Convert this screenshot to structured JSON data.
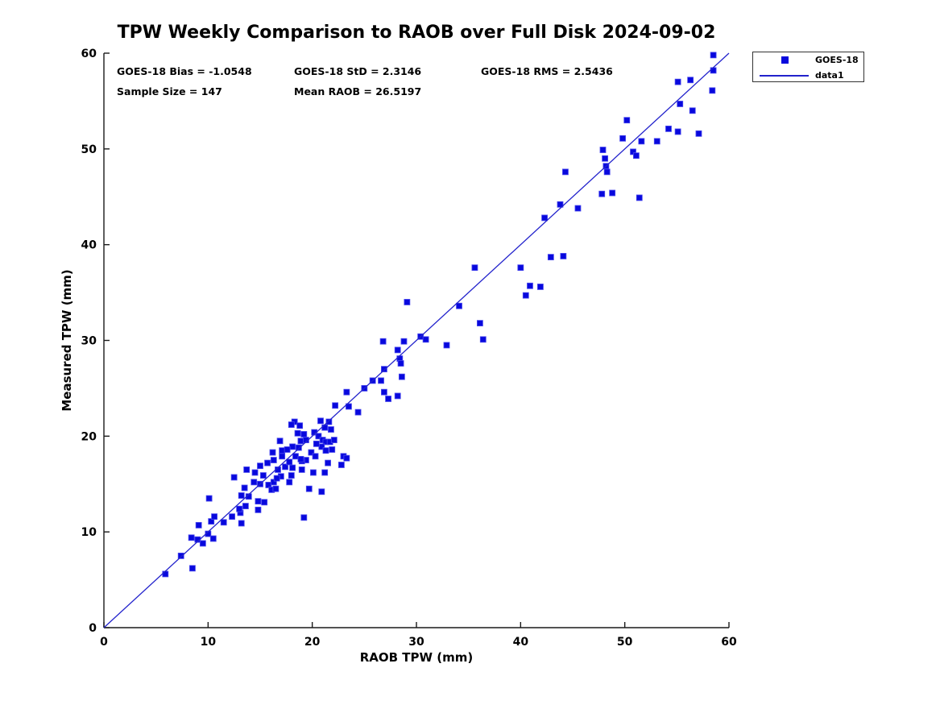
{
  "title": "TPW Weekly Comparison to RAOB over Full Disk 2024-09-02",
  "stats": {
    "bias": "GOES-18 Bias = -1.0548",
    "std": "GOES-18 StD = 2.3146",
    "rms": "GOES-18 RMS = 2.5436",
    "sample_size": "Sample Size = 147",
    "mean_raob": "Mean RAOB = 26.5197"
  },
  "legend": {
    "series1_label": "GOES-18",
    "series2_label": "data1"
  },
  "colors": {
    "marker": "#0808dd",
    "marker_edge": "#4a4aee",
    "line": "#2222cc",
    "axis": "#1a1a1a",
    "text": "#000000"
  },
  "chart_data": {
    "type": "scatter",
    "title": "TPW Weekly Comparison to RAOB over Full Disk 2024-09-02",
    "xlabel": "RAOB TPW (mm)",
    "ylabel": "Measured TPW (mm)",
    "xlim": [
      0,
      60
    ],
    "ylim": [
      0,
      60
    ],
    "xticks": [
      0,
      10,
      20,
      30,
      40,
      50,
      60
    ],
    "yticks": [
      0,
      10,
      20,
      30,
      40,
      50,
      60
    ],
    "grid": false,
    "legend_position": "outside-top-right",
    "series": [
      {
        "name": "GOES-18",
        "kind": "scatter",
        "marker": "square",
        "points": [
          [
            5.9,
            5.6
          ],
          [
            7.4,
            7.5
          ],
          [
            8.5,
            6.2
          ],
          [
            8.4,
            9.4
          ],
          [
            9.0,
            9.2
          ],
          [
            9.5,
            8.8
          ],
          [
            10.0,
            9.8
          ],
          [
            10.5,
            9.3
          ],
          [
            9.1,
            10.7
          ],
          [
            10.3,
            11.1
          ],
          [
            10.6,
            11.6
          ],
          [
            11.5,
            11.0
          ],
          [
            10.1,
            13.5
          ],
          [
            12.3,
            11.6
          ],
          [
            13.1,
            12.0
          ],
          [
            13.6,
            12.7
          ],
          [
            13.2,
            10.9
          ],
          [
            13.0,
            12.4
          ],
          [
            14.8,
            12.3
          ],
          [
            14.8,
            13.2
          ],
          [
            15.4,
            13.1
          ],
          [
            13.2,
            13.8
          ],
          [
            13.9,
            13.7
          ],
          [
            13.5,
            14.6
          ],
          [
            14.4,
            15.2
          ],
          [
            15.0,
            15.0
          ],
          [
            12.5,
            15.7
          ],
          [
            14.5,
            16.2
          ],
          [
            13.7,
            16.5
          ],
          [
            19.2,
            11.5
          ],
          [
            15.8,
            14.9
          ],
          [
            16.3,
            15.2
          ],
          [
            16.1,
            14.4
          ],
          [
            16.5,
            14.5
          ],
          [
            17.0,
            15.8
          ],
          [
            18.0,
            15.9
          ],
          [
            18.1,
            16.7
          ],
          [
            15.0,
            16.9
          ],
          [
            15.7,
            17.2
          ],
          [
            16.3,
            17.5
          ],
          [
            17.1,
            17.9
          ],
          [
            16.9,
            19.5
          ],
          [
            16.2,
            18.3
          ],
          [
            17.1,
            18.5
          ],
          [
            18.1,
            18.9
          ],
          [
            18.7,
            18.8
          ],
          [
            18.4,
            17.9
          ],
          [
            18.9,
            19.5
          ],
          [
            19.4,
            19.6
          ],
          [
            19.2,
            20.2
          ],
          [
            20.2,
            20.4
          ],
          [
            20.6,
            20.0
          ],
          [
            21.0,
            19.6
          ],
          [
            21.3,
            19.4
          ],
          [
            20.9,
            18.9
          ],
          [
            21.3,
            18.5
          ],
          [
            21.7,
            19.4
          ],
          [
            22.1,
            19.6
          ],
          [
            21.8,
            20.7
          ],
          [
            21.6,
            21.5
          ],
          [
            20.8,
            21.6
          ],
          [
            21.2,
            20.9
          ],
          [
            23.0,
            17.9
          ],
          [
            23.3,
            17.7
          ],
          [
            22.8,
            17.0
          ],
          [
            21.5,
            17.2
          ],
          [
            20.1,
            16.2
          ],
          [
            21.2,
            16.2
          ],
          [
            19.7,
            14.5
          ],
          [
            20.9,
            14.2
          ],
          [
            19.4,
            17.5
          ],
          [
            19.0,
            17.4
          ],
          [
            18.3,
            21.5
          ],
          [
            18.8,
            21.1
          ],
          [
            18.0,
            21.2
          ],
          [
            16.7,
            16.5
          ],
          [
            17.4,
            16.8
          ],
          [
            17.8,
            17.3
          ],
          [
            18.9,
            17.6
          ],
          [
            19.9,
            18.3
          ],
          [
            20.4,
            19.2
          ],
          [
            20.3,
            17.9
          ],
          [
            21.9,
            18.6
          ],
          [
            16.6,
            15.6
          ],
          [
            15.3,
            15.9
          ],
          [
            17.6,
            18.6
          ],
          [
            19.0,
            16.5
          ],
          [
            18.6,
            20.3
          ],
          [
            17.8,
            15.2
          ],
          [
            23.5,
            23.1
          ],
          [
            24.4,
            22.5
          ],
          [
            22.2,
            23.2
          ],
          [
            23.3,
            24.6
          ],
          [
            25.0,
            25.0
          ],
          [
            26.6,
            25.8
          ],
          [
            26.9,
            24.6
          ],
          [
            27.3,
            23.9
          ],
          [
            28.2,
            24.2
          ],
          [
            28.6,
            26.2
          ],
          [
            26.9,
            27.0
          ],
          [
            25.8,
            25.8
          ],
          [
            28.4,
            28.1
          ],
          [
            28.5,
            27.6
          ],
          [
            28.2,
            29.0
          ],
          [
            26.8,
            29.9
          ],
          [
            28.8,
            29.9
          ],
          [
            30.4,
            30.4
          ],
          [
            30.9,
            30.1
          ],
          [
            32.9,
            29.5
          ],
          [
            29.1,
            34.0
          ],
          [
            34.1,
            33.6
          ],
          [
            36.1,
            31.8
          ],
          [
            36.4,
            30.1
          ],
          [
            35.6,
            37.6
          ],
          [
            40.0,
            37.6
          ],
          [
            40.9,
            35.7
          ],
          [
            41.9,
            35.6
          ],
          [
            40.5,
            34.7
          ],
          [
            42.3,
            42.8
          ],
          [
            42.9,
            38.7
          ],
          [
            44.1,
            38.8
          ],
          [
            43.8,
            44.2
          ],
          [
            45.5,
            43.8
          ],
          [
            44.3,
            47.6
          ],
          [
            47.8,
            45.3
          ],
          [
            48.8,
            45.4
          ],
          [
            51.4,
            44.9
          ],
          [
            47.9,
            49.9
          ],
          [
            48.1,
            49.0
          ],
          [
            48.2,
            48.2
          ],
          [
            48.3,
            47.6
          ],
          [
            50.8,
            49.7
          ],
          [
            51.1,
            49.3
          ],
          [
            51.6,
            50.8
          ],
          [
            53.1,
            50.8
          ],
          [
            49.8,
            51.1
          ],
          [
            50.2,
            53.0
          ],
          [
            54.2,
            52.1
          ],
          [
            55.1,
            51.8
          ],
          [
            57.1,
            51.6
          ],
          [
            55.3,
            54.7
          ],
          [
            56.5,
            54.0
          ],
          [
            55.1,
            57.0
          ],
          [
            56.3,
            57.2
          ],
          [
            58.4,
            56.1
          ],
          [
            58.5,
            58.2
          ],
          [
            58.5,
            59.8
          ]
        ]
      },
      {
        "name": "data1",
        "kind": "line",
        "points": [
          [
            0,
            0
          ],
          [
            60,
            60
          ]
        ]
      }
    ]
  }
}
